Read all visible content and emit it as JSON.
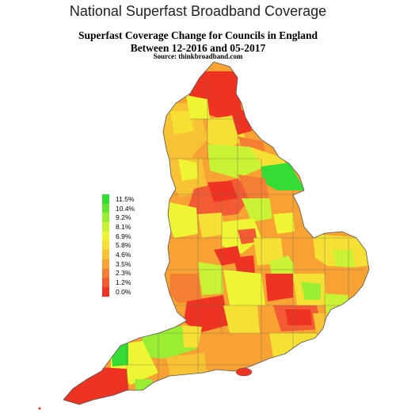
{
  "header": {
    "page_title": "National Superfast Broadband Coverage",
    "map_title_line1": "Superfast Coverage Change for Councils in England",
    "map_title_line2": "Between 12-2016 and 05-2017",
    "source": "Source: thinkbroadband.com"
  },
  "legend": {
    "items": [
      {
        "label": "11.5%",
        "color": "#33dd33"
      },
      {
        "label": "10.4%",
        "color": "#66e633"
      },
      {
        "label": "9.2%",
        "color": "#99ee33"
      },
      {
        "label": "8.1%",
        "color": "#c8f233"
      },
      {
        "label": "6.9%",
        "color": "#eef533"
      },
      {
        "label": "5.8%",
        "color": "#f5e033"
      },
      {
        "label": "4.6%",
        "color": "#f7c233"
      },
      {
        "label": "3.5%",
        "color": "#f7a233"
      },
      {
        "label": "2.3%",
        "color": "#f47f33"
      },
      {
        "label": "1.2%",
        "color": "#f25b33"
      },
      {
        "label": "0.0%",
        "color": "#ee3322"
      }
    ]
  },
  "colors": {
    "border": "#7a6a55",
    "outline": "#555555"
  }
}
